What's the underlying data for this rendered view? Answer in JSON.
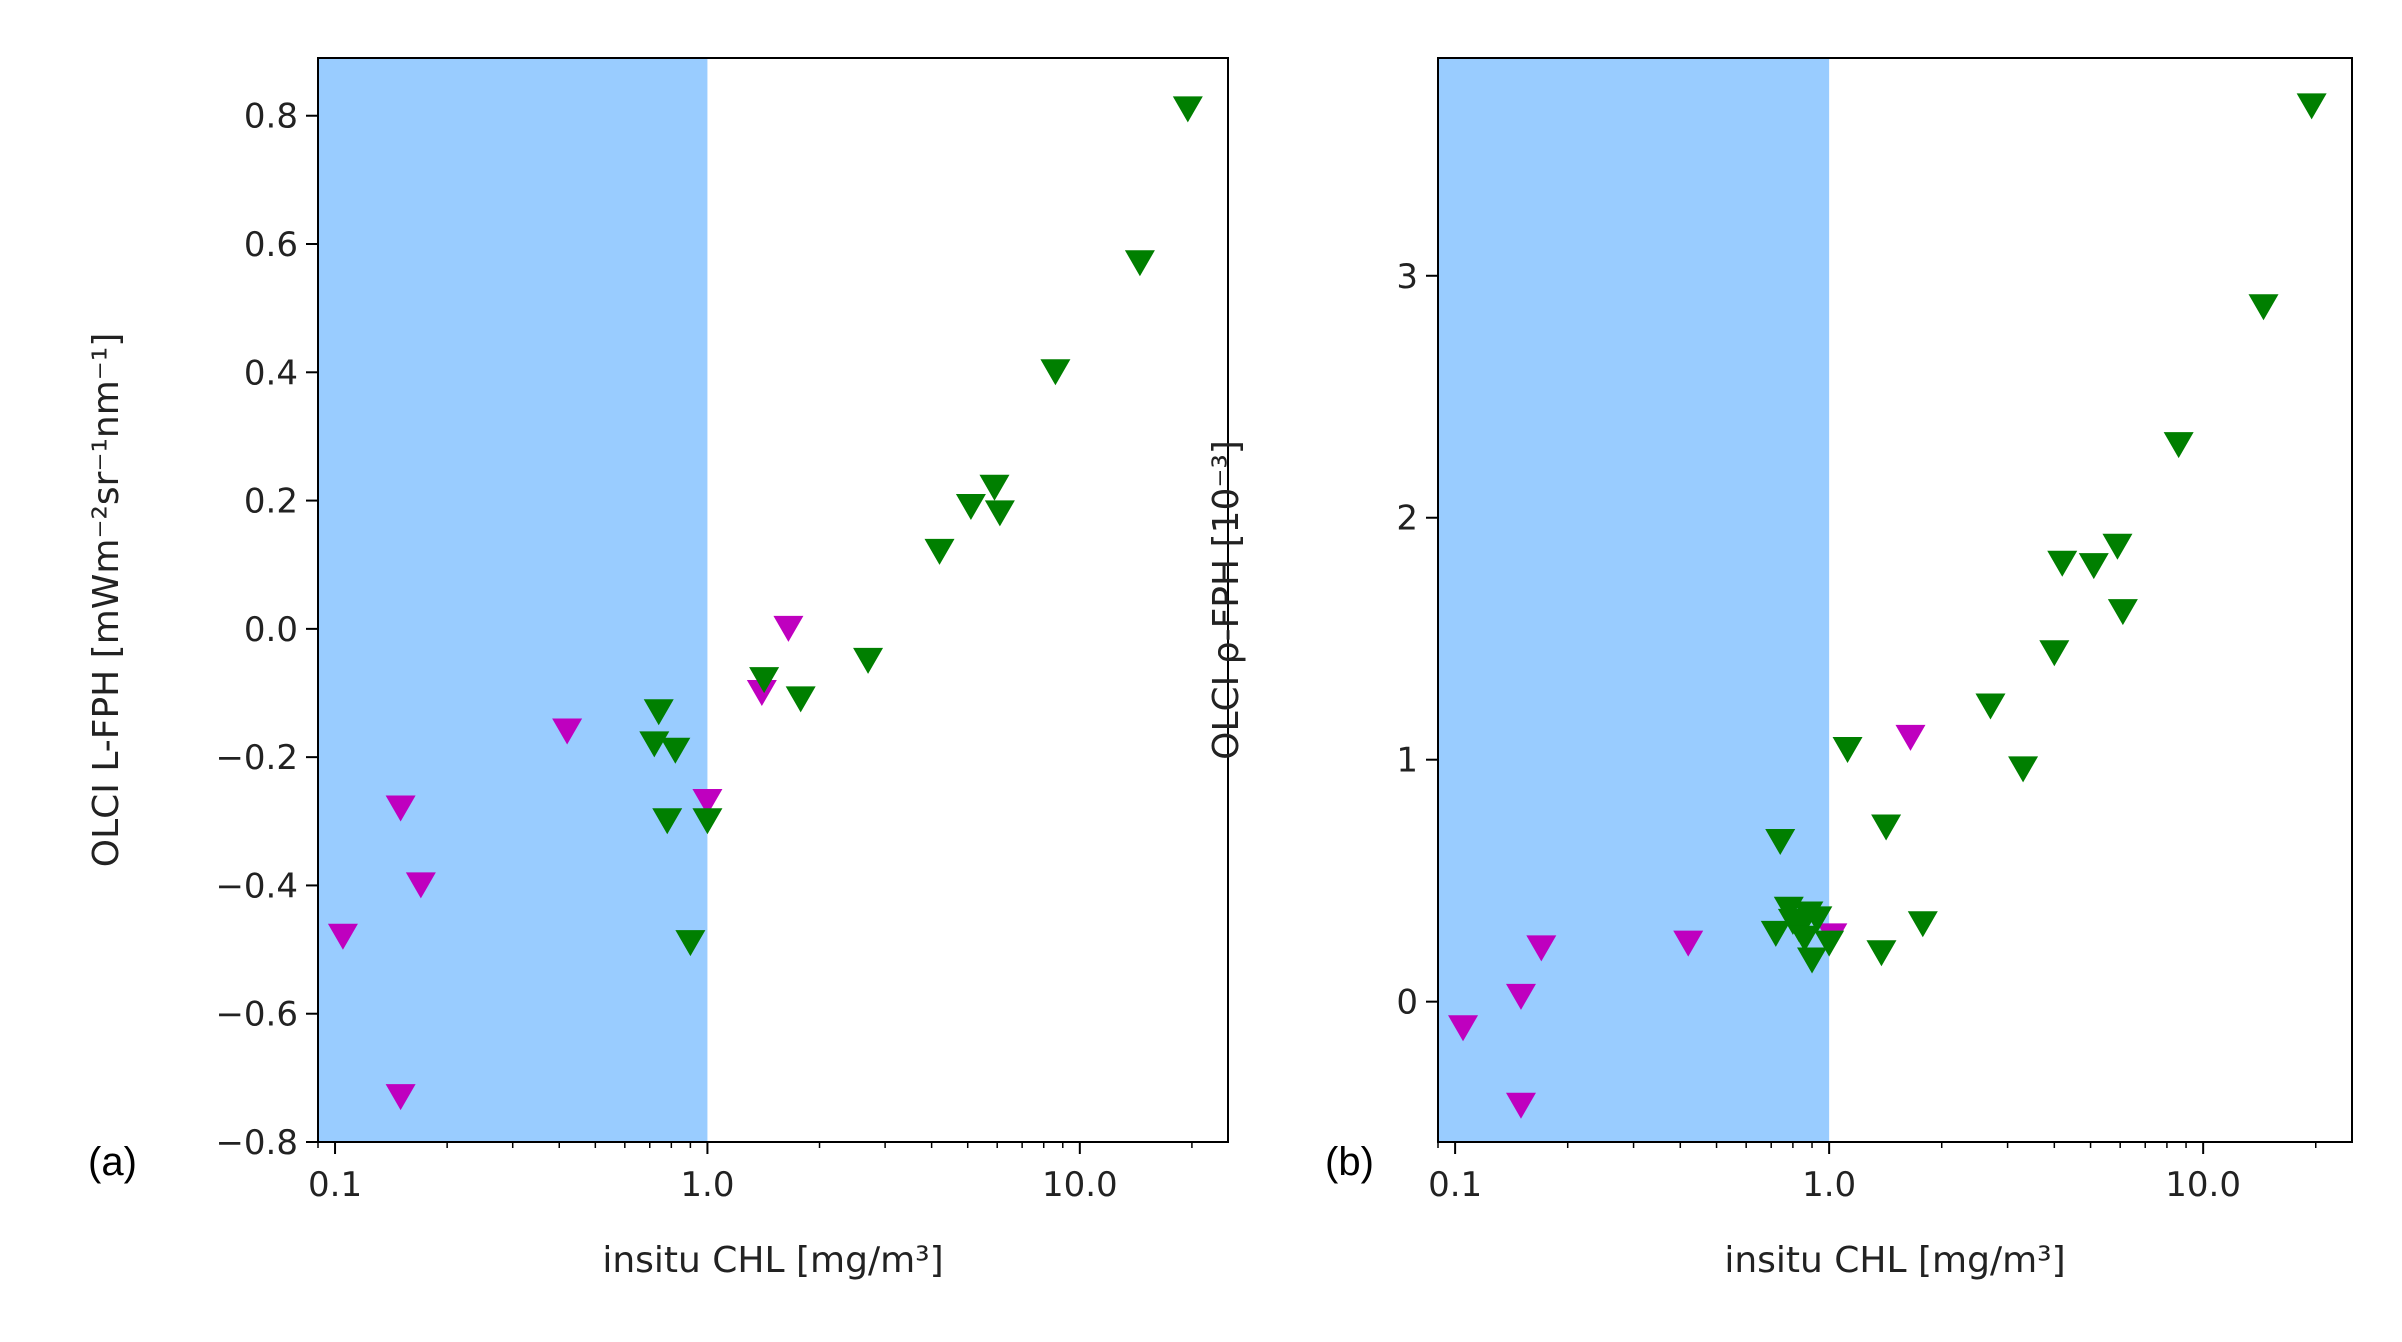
{
  "colors": {
    "shade": "#99ccff",
    "magenta": "#bf00bf",
    "green": "#007f00",
    "axis": "#000000"
  },
  "chart_data": [
    {
      "type": "scatter",
      "panel_label": "(a)",
      "xlabel": "insitu CHL [mg/m³]",
      "ylabel": "OLCI L-FPH [mWm⁻²sr⁻¹nm⁻¹]",
      "xscale": "log",
      "xlim": [
        0.09,
        25
      ],
      "ylim": [
        -0.8,
        0.89
      ],
      "xticks": [
        0.1,
        1.0,
        10.0
      ],
      "xtick_labels": [
        "0.1",
        "1.0",
        "10.0"
      ],
      "yticks": [
        -0.8,
        -0.6,
        -0.4,
        -0.2,
        0.0,
        0.2,
        0.4,
        0.6,
        0.8
      ],
      "ytick_labels": [
        "−0.8",
        "−0.6",
        "−0.4",
        "−0.2",
        "0.0",
        "0.2",
        "0.4",
        "0.6",
        "0.8"
      ],
      "shaded_x_range": [
        0.09,
        1.0
      ],
      "marker": "triangle-down",
      "series": [
        {
          "name": "magenta",
          "color": "#bf00bf",
          "x": [
            0.105,
            0.15,
            0.15,
            0.17,
            0.42,
            1.0,
            1.4,
            1.65
          ],
          "y": [
            -0.48,
            -0.28,
            -0.73,
            -0.4,
            -0.16,
            -0.27,
            -0.1,
            0.0
          ]
        },
        {
          "name": "green",
          "color": "#007f00",
          "x": [
            0.72,
            0.74,
            0.78,
            0.82,
            0.9,
            1.0,
            1.42,
            1.78,
            2.7,
            4.2,
            5.1,
            5.9,
            6.1,
            8.6,
            14.5,
            19.5
          ],
          "y": [
            -0.18,
            -0.13,
            -0.3,
            -0.19,
            -0.49,
            -0.3,
            -0.08,
            -0.11,
            -0.05,
            0.12,
            0.19,
            0.22,
            0.18,
            0.4,
            0.57,
            0.81
          ]
        }
      ]
    },
    {
      "type": "scatter",
      "panel_label": "(b)",
      "xlabel": "insitu CHL [mg/m³]",
      "ylabel": "OLCI ρ-FPH [10⁻³]",
      "xscale": "log",
      "xlim": [
        0.09,
        25
      ],
      "ylim": [
        -0.58,
        3.9
      ],
      "xticks": [
        0.1,
        1.0,
        10.0
      ],
      "xtick_labels": [
        "0.1",
        "1.0",
        "10.0"
      ],
      "yticks": [
        0,
        1,
        2,
        3
      ],
      "ytick_labels": [
        "0",
        "1",
        "2",
        "3"
      ],
      "shaded_x_range": [
        0.09,
        1.0
      ],
      "marker": "triangle-down",
      "series": [
        {
          "name": "magenta",
          "color": "#bf00bf",
          "x": [
            0.105,
            0.15,
            0.15,
            0.17,
            0.42,
            1.02,
            1.65
          ],
          "y": [
            -0.11,
            0.02,
            -0.43,
            0.22,
            0.24,
            0.27,
            1.09
          ]
        },
        {
          "name": "green",
          "color": "#007f00",
          "x": [
            0.72,
            0.74,
            0.78,
            0.8,
            0.83,
            0.86,
            0.88,
            0.9,
            0.93,
            1.0,
            1.12,
            1.38,
            1.42,
            1.78,
            2.7,
            3.3,
            4.0,
            4.2,
            5.1,
            5.9,
            6.1,
            8.6,
            14.5,
            19.5
          ],
          "y": [
            0.28,
            0.66,
            0.38,
            0.33,
            0.3,
            0.26,
            0.36,
            0.17,
            0.34,
            0.24,
            1.04,
            0.2,
            0.72,
            0.32,
            1.22,
            0.96,
            1.44,
            1.81,
            1.8,
            1.88,
            1.61,
            2.3,
            2.87,
            3.7
          ]
        }
      ]
    }
  ]
}
